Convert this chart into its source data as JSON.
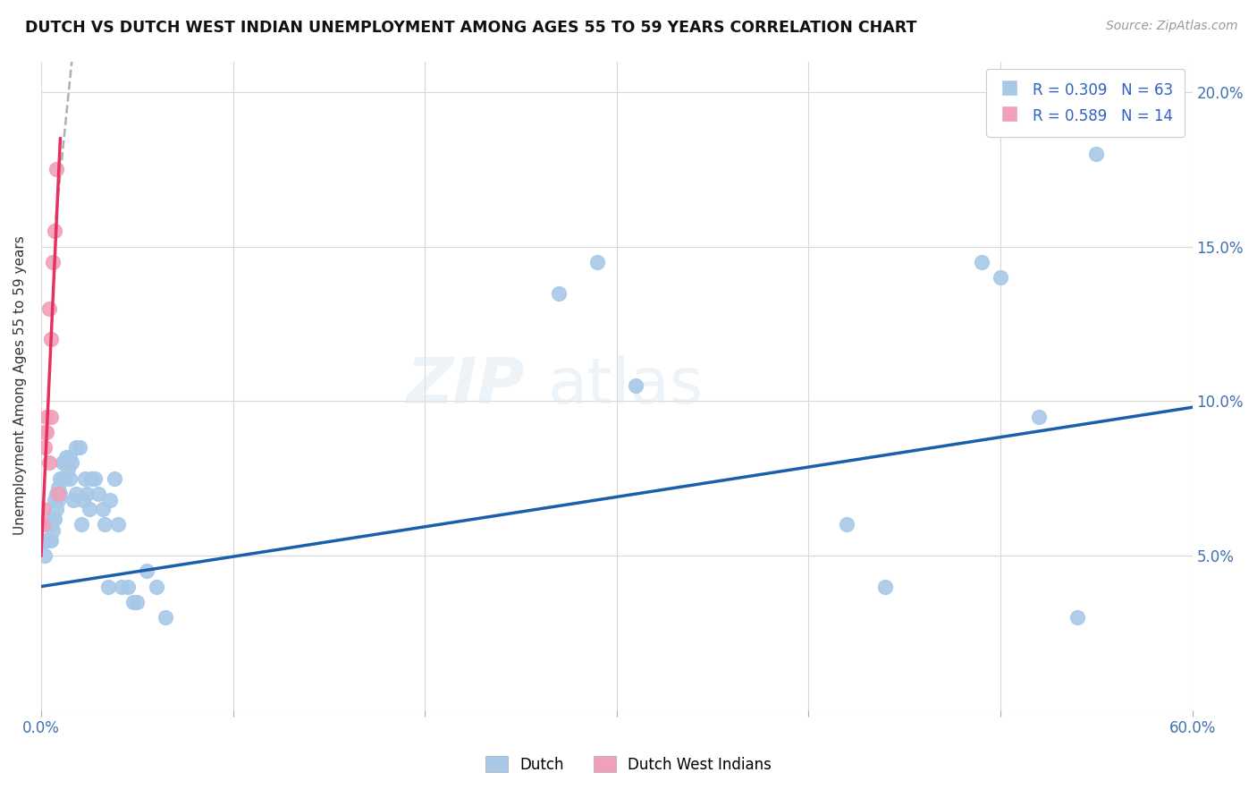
{
  "title": "DUTCH VS DUTCH WEST INDIAN UNEMPLOYMENT AMONG AGES 55 TO 59 YEARS CORRELATION CHART",
  "source": "Source: ZipAtlas.com",
  "ylabel": "Unemployment Among Ages 55 to 59 years",
  "xlim": [
    0,
    0.6
  ],
  "ylim": [
    0,
    0.21
  ],
  "xticks": [
    0.0,
    0.1,
    0.2,
    0.3,
    0.4,
    0.5,
    0.6
  ],
  "yticks": [
    0.0,
    0.05,
    0.1,
    0.15,
    0.2
  ],
  "xticklabels": [
    "0.0%",
    "",
    "",
    "",
    "",
    "",
    "60.0%"
  ],
  "yticklabels": [
    "",
    "5.0%",
    "10.0%",
    "15.0%",
    "20.0%"
  ],
  "dutch_color": "#a8c8e8",
  "dutch_west_color": "#f0a0b8",
  "trendline_dutch_color": "#1a5faa",
  "trendline_dwi_color": "#e83060",
  "watermark": "ZIPatlas",
  "dutch_x": [
    0.001,
    0.002,
    0.002,
    0.003,
    0.003,
    0.004,
    0.004,
    0.005,
    0.005,
    0.006,
    0.006,
    0.007,
    0.007,
    0.008,
    0.008,
    0.009,
    0.009,
    0.01,
    0.01,
    0.011,
    0.011,
    0.012,
    0.012,
    0.013,
    0.014,
    0.015,
    0.015,
    0.016,
    0.017,
    0.018,
    0.018,
    0.02,
    0.021,
    0.022,
    0.023,
    0.024,
    0.025,
    0.026,
    0.028,
    0.03,
    0.032,
    0.033,
    0.035,
    0.036,
    0.038,
    0.04,
    0.042,
    0.045,
    0.048,
    0.05,
    0.055,
    0.06,
    0.065,
    0.27,
    0.29,
    0.31,
    0.42,
    0.44,
    0.49,
    0.5,
    0.52,
    0.54,
    0.55
  ],
  "dutch_y": [
    0.055,
    0.05,
    0.06,
    0.055,
    0.06,
    0.055,
    0.06,
    0.055,
    0.06,
    0.062,
    0.058,
    0.062,
    0.068,
    0.065,
    0.07,
    0.068,
    0.072,
    0.07,
    0.075,
    0.075,
    0.08,
    0.075,
    0.08,
    0.082,
    0.078,
    0.075,
    0.082,
    0.08,
    0.068,
    0.07,
    0.085,
    0.085,
    0.06,
    0.068,
    0.075,
    0.07,
    0.065,
    0.075,
    0.075,
    0.07,
    0.065,
    0.06,
    0.04,
    0.068,
    0.075,
    0.06,
    0.04,
    0.04,
    0.035,
    0.035,
    0.045,
    0.04,
    0.03,
    0.135,
    0.145,
    0.105,
    0.06,
    0.04,
    0.145,
    0.14,
    0.095,
    0.03,
    0.18
  ],
  "dwi_x": [
    0.001,
    0.001,
    0.002,
    0.002,
    0.003,
    0.003,
    0.004,
    0.004,
    0.005,
    0.005,
    0.006,
    0.007,
    0.008,
    0.009
  ],
  "dwi_y": [
    0.065,
    0.06,
    0.085,
    0.09,
    0.09,
    0.095,
    0.13,
    0.08,
    0.095,
    0.12,
    0.145,
    0.155,
    0.175,
    0.07
  ],
  "trendline_dutch_x0": 0.0,
  "trendline_dutch_x1": 0.6,
  "trendline_dutch_y0": 0.04,
  "trendline_dutch_y1": 0.098,
  "trendline_dwi_x0": 0.0,
  "trendline_dwi_x1": 0.01,
  "trendline_dwi_y0": 0.05,
  "trendline_dwi_y1": 0.185,
  "trendline_gray_x0": 0.007,
  "trendline_gray_x1": 0.016,
  "trendline_gray_y0": 0.155,
  "trendline_gray_y1": 0.21
}
